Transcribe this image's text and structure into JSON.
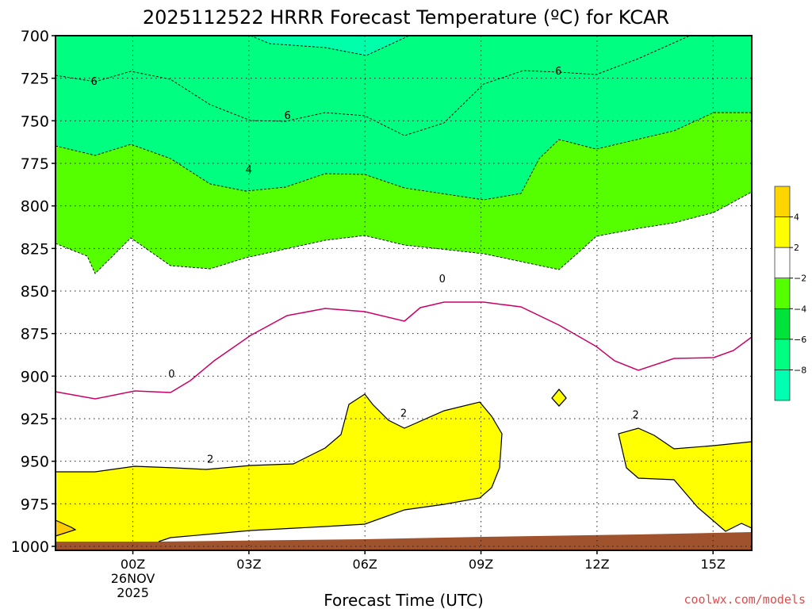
{
  "chart_data": {
    "type": "heatmap",
    "title": "2025112522 HRRR Forecast Temperature (ºC) for KCAR",
    "xlabel": "Forecast Time (UTC)",
    "ylabel": "",
    "y_ticks": [
      "700",
      "725",
      "750",
      "775",
      "800",
      "825",
      "850",
      "875",
      "900",
      "925",
      "950",
      "975",
      "1000"
    ],
    "y_range": [
      700,
      1000
    ],
    "x_range_hours": [
      -2,
      16
    ],
    "x_ticks": [
      {
        "hour": 0,
        "label": "00Z",
        "date_line1": "26NOV",
        "date_line2": "2025"
      },
      {
        "hour": 3,
        "label": "03Z"
      },
      {
        "hour": 6,
        "label": "06Z"
      },
      {
        "hour": 9,
        "label": "09Z"
      },
      {
        "hour": 12,
        "label": "12Z"
      },
      {
        "hour": 15,
        "label": "15Z"
      }
    ],
    "grid": true,
    "contour_labels": [
      {
        "text": "6",
        "hour": -1,
        "p": 727
      },
      {
        "text": "6",
        "hour": 4,
        "p": 747
      },
      {
        "text": "6",
        "hour": 11,
        "p": 721
      },
      {
        "text": "4",
        "hour": 3,
        "p": 779
      },
      {
        "text": "0",
        "hour": 1,
        "p": 899
      },
      {
        "text": "0",
        "hour": 8,
        "p": 843
      },
      {
        "text": "2",
        "hour": 2,
        "p": 949
      },
      {
        "text": "2",
        "hour": 7,
        "p": 922
      },
      {
        "text": "2",
        "hour": 13,
        "p": 923
      }
    ],
    "colorbar": {
      "levels": [
        "4",
        "2",
        "−2",
        "−4",
        "−6",
        "−8"
      ],
      "colors": [
        "#ffd500",
        "#ffff00",
        "#ffffff",
        "#55ff00",
        "#00e33a",
        "#00ff80",
        "#00ffb0"
      ]
    },
    "colors": {
      "yellow": "#ffff00",
      "orange": "#ffcc00",
      "green_light": "#55ff00",
      "green_mid": "#00e83c",
      "green_cyan": "#00ff80",
      "cyan": "#00ffaa",
      "zero_line": "#cc0066",
      "terrain": "#a0522d"
    }
  },
  "credit": "coolwx.com/models"
}
